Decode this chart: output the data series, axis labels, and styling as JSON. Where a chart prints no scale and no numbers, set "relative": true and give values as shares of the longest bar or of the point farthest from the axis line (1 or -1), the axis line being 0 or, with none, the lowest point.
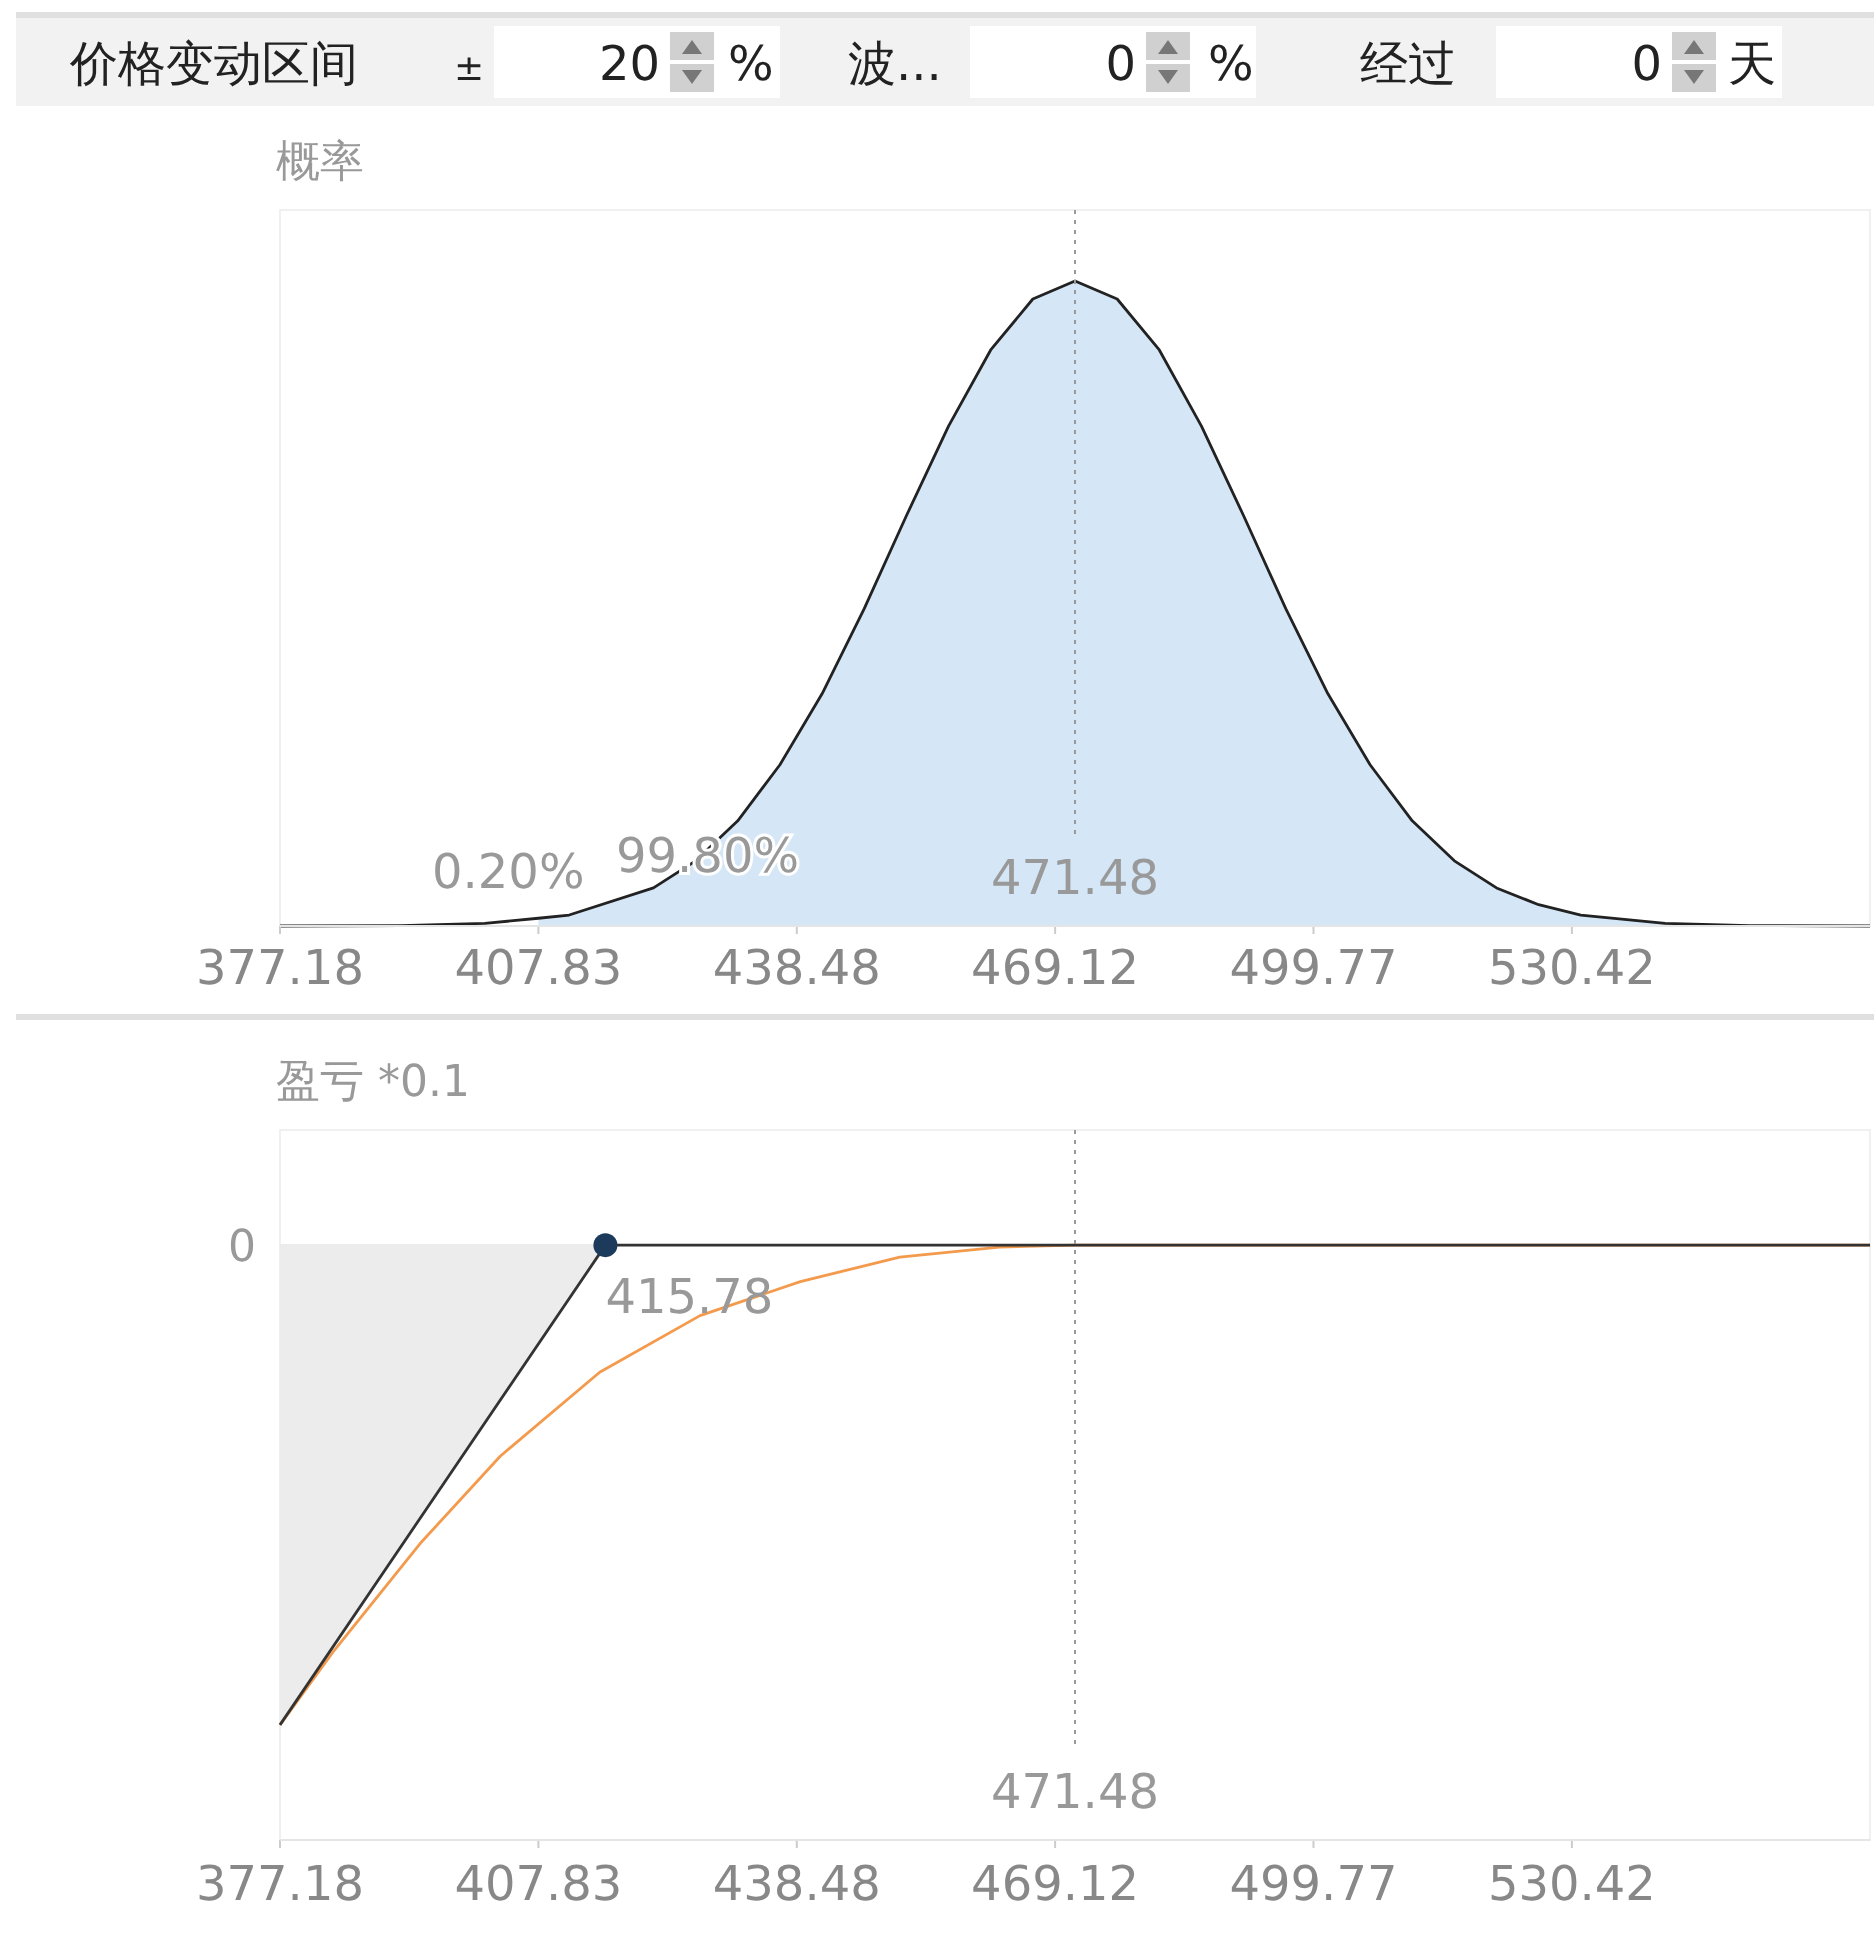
{
  "chart_data": [
    {
      "type": "other",
      "annotations": [
        "价格变动区间",
        "±",
        "20",
        "%",
        "波...",
        "0",
        "%",
        "经过",
        "0",
        "天"
      ]
    },
    {
      "type": "area",
      "ylabel": "概率",
      "relative": true,
      "xlim": [
        377.18,
        565.78
      ],
      "xticks": [
        377.18,
        407.83,
        438.48,
        469.12,
        499.77,
        530.42
      ],
      "series": [
        {
          "type": "area",
          "color": "#d5e6f7",
          "x": [
            407.83,
            411.48,
            421.48,
            426.48,
            431.48,
            436.48,
            441.48,
            446.48,
            451.48,
            456.48,
            461.48,
            466.48,
            471.48,
            476.48,
            481.48,
            486.48,
            491.48,
            496.48,
            501.48,
            506.48,
            511.48,
            516.48,
            521.48,
            526.48,
            531.48,
            541.48,
            551.48,
            565.78
          ],
          "values": [
            0.012,
            0.017,
            0.059,
            0.101,
            0.163,
            0.25,
            0.36,
            0.492,
            0.636,
            0.775,
            0.893,
            0.972,
            1,
            0.972,
            0.893,
            0.775,
            0.636,
            0.492,
            0.36,
            0.25,
            0.163,
            0.101,
            0.059,
            0.033,
            0.017,
            0.004,
            0.0007,
            0
          ]
        },
        {
          "type": "line",
          "color": "#222222",
          "x": [
            377.18,
            391.48,
            401.48,
            407.83,
            411.48,
            421.48,
            426.48,
            431.48,
            436.48,
            441.48,
            446.48,
            451.48,
            456.48,
            461.48,
            466.48,
            471.48,
            476.48,
            481.48,
            486.48,
            491.48,
            496.48,
            501.48,
            506.48,
            511.48,
            516.48,
            521.48,
            526.48,
            531.48,
            541.48,
            551.48,
            565.78
          ],
          "values": [
            0,
            0.0007,
            0.004,
            0.012,
            0.017,
            0.059,
            0.101,
            0.163,
            0.25,
            0.36,
            0.492,
            0.636,
            0.775,
            0.893,
            0.972,
            1,
            0.972,
            0.893,
            0.775,
            0.636,
            0.492,
            0.36,
            0.25,
            0.163,
            0.101,
            0.059,
            0.033,
            0.017,
            0.004,
            0.0007,
            0
          ]
        }
      ],
      "ref_lines": [
        {
          "axis": "x",
          "value": 471.48,
          "label": "471.48",
          "color": "#999999",
          "line_style": "dotted"
        }
      ],
      "annotations": [
        "0.20%",
        "99.80%"
      ]
    },
    {
      "type": "line",
      "ylabel": "盈亏 *0.1",
      "relative": true,
      "xlim": [
        377.18,
        565.78
      ],
      "xticks": [
        377.18,
        407.83,
        438.48,
        469.12,
        499.77,
        530.42
      ],
      "series": [
        {
          "type": "area",
          "color": "#ececec",
          "x": [
            377.18,
            415.78
          ],
          "values": [
            -1,
            0
          ]
        },
        {
          "type": "line",
          "color": "#f39a4c",
          "x": [
            377.18,
            383.6,
            393.8,
            403.3,
            415.1,
            427.0,
            438.9,
            450.7,
            462.5,
            471.5,
            565.78
          ],
          "values": [
            -1,
            -0.845,
            -0.622,
            -0.44,
            -0.265,
            -0.147,
            -0.076,
            -0.025,
            -0.004,
            0,
            0
          ]
        },
        {
          "type": "line",
          "color": "#333333",
          "x": [
            377.18,
            415.78,
            565.78
          ],
          "values": [
            -1,
            0,
            0
          ]
        },
        {
          "type": "scatter",
          "color": "#1b3a5c",
          "marker": "circle",
          "x": [
            415.78
          ],
          "values": [
            0
          ]
        }
      ],
      "annotations": [
        {
          "text": "415.78",
          "x": 415.78,
          "y": 0
        }
      ],
      "ref_lines": [
        {
          "axis": "y",
          "value": 0,
          "label": "0",
          "color": "#e6e6e6",
          "line_style": "solid"
        },
        {
          "axis": "x",
          "value": 471.48,
          "label": "471.48",
          "color": "#999999",
          "line_style": "dotted"
        }
      ]
    }
  ]
}
